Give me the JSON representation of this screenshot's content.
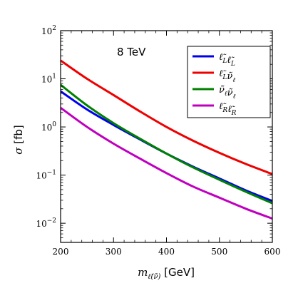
{
  "chart_data": {
    "type": "line",
    "annotation": "8 TeV",
    "xlabel": "m_ℓ̃(ν̃) [GeV]",
    "xlabel_parts": {
      "symbol": "m",
      "subscript": "ℓ̃(ν̃)",
      "unit": " [GeV]"
    },
    "ylabel": "σ [fb]",
    "ylabel_parts": {
      "symbol": "σ",
      "unit": " [fb]"
    },
    "xlim": [
      200,
      600
    ],
    "ylim": [
      0.004,
      100
    ],
    "yscale": "log",
    "grid": false,
    "legend_position": "top-right",
    "x_ticks": [
      "200",
      "300",
      "400",
      "500",
      "600"
    ],
    "y_ticks": [
      {
        "base": "10",
        "exp": "−2",
        "value": 0.01
      },
      {
        "base": "10",
        "exp": "−1",
        "value": 0.1
      },
      {
        "base": "10",
        "exp": "0",
        "value": 1
      },
      {
        "base": "10",
        "exp": "1",
        "value": 10
      },
      {
        "base": "10",
        "exp": "2",
        "value": 100
      }
    ],
    "x": [
      200,
      250,
      300,
      350,
      400,
      450,
      500,
      550,
      600
    ],
    "series": [
      {
        "name": "ℓ̃Lℓ̃L",
        "label_parts": [
          [
            "ℓ̃",
            "L"
          ],
          [
            "ℓ̃",
            "L"
          ]
        ],
        "color": "#0000ee",
        "values": [
          5.5,
          2.3,
          1.1,
          0.55,
          0.28,
          0.15,
          0.085,
          0.048,
          0.029
        ]
      },
      {
        "name": "ℓ̃Lν̃ℓ",
        "label_parts": [
          [
            "ℓ̃",
            "L"
          ],
          [
            "ν̃",
            "ℓ"
          ]
        ],
        "color": "#ee0000",
        "values": [
          24,
          10,
          4.6,
          2.1,
          1.0,
          0.52,
          0.29,
          0.17,
          0.105
        ]
      },
      {
        "name": "ν̃ℓν̃ℓ",
        "label_parts": [
          [
            "ν̃",
            "ℓ"
          ],
          [
            "ν̃",
            "ℓ"
          ]
        ],
        "color": "#008000",
        "values": [
          7.5,
          2.8,
          1.2,
          0.57,
          0.28,
          0.145,
          0.08,
          0.045,
          0.026
        ]
      },
      {
        "name": "ℓ̃Rℓ̃R",
        "label_parts": [
          [
            "ℓ̃",
            "R"
          ],
          [
            "ℓ̃",
            "R"
          ]
        ],
        "color": "#bf00bf",
        "values": [
          2.5,
          1.0,
          0.45,
          0.22,
          0.11,
          0.058,
          0.034,
          0.02,
          0.0125
        ]
      }
    ]
  }
}
